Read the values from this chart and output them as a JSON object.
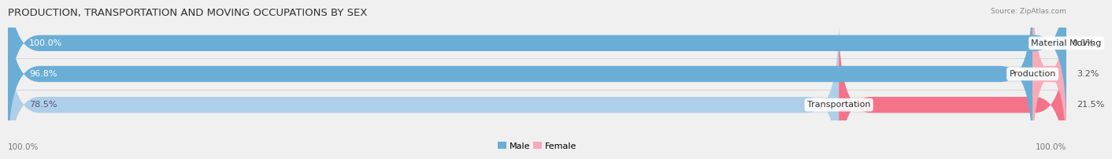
{
  "title": "PRODUCTION, TRANSPORTATION AND MOVING OCCUPATIONS BY SEX",
  "source": "Source: ZipAtlas.com",
  "categories": [
    "Material Moving",
    "Production",
    "Transportation"
  ],
  "male_values": [
    100.0,
    96.8,
    78.5
  ],
  "female_values": [
    0.0,
    3.2,
    21.5
  ],
  "male_color_bright": "#6aaed6",
  "male_color_light": "#aecfe8",
  "female_color_bright": "#f4738a",
  "female_color_light": "#f9aab8",
  "bg_color": "#f0f0f0",
  "bar_bg_color": "#e2e2e2",
  "title_fontsize": 9.5,
  "label_fontsize": 8,
  "tick_fontsize": 7.5,
  "bar_height": 0.52,
  "bottom_labels": [
    "100.0%",
    "100.0%"
  ]
}
